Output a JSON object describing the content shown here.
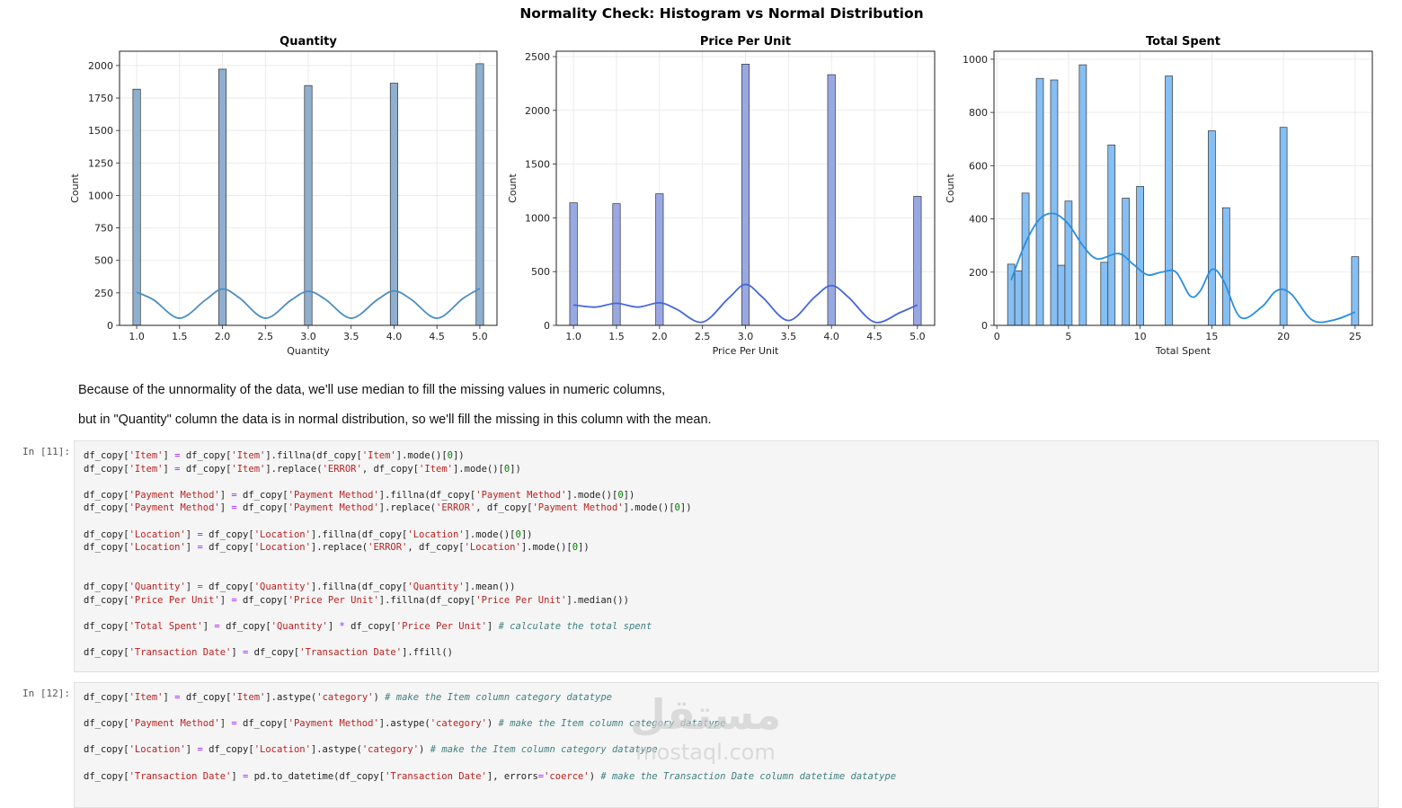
{
  "figure": {
    "suptitle": "Normality Check: Histogram vs Normal Distribution"
  },
  "chart_data": [
    {
      "type": "bar",
      "title": "Quantity",
      "xlabel": "Quantity",
      "ylabel": "Count",
      "xlim": [
        0.8,
        5.2
      ],
      "ylim": [
        0,
        2110
      ],
      "xticks": [
        "1.0",
        "1.5",
        "2.0",
        "2.5",
        "3.0",
        "3.5",
        "4.0",
        "4.5",
        "5.0"
      ],
      "xtick_values": [
        1.0,
        1.5,
        2.0,
        2.5,
        3.0,
        3.5,
        4.0,
        4.5,
        5.0
      ],
      "yticks": [
        0,
        250,
        500,
        750,
        1000,
        1250,
        1500,
        1750,
        2000
      ],
      "bar_width": 0.088,
      "bar_color": "#8fafcf",
      "kde_color": "#4c8ec0",
      "bars": [
        {
          "x": 1.0,
          "y": 1818
        },
        {
          "x": 2.0,
          "y": 1972
        },
        {
          "x": 3.0,
          "y": 1846
        },
        {
          "x": 4.0,
          "y": 1864
        },
        {
          "x": 5.0,
          "y": 2014
        }
      ],
      "kde": [
        [
          1.0,
          255
        ],
        [
          1.2,
          195
        ],
        [
          1.5,
          55
        ],
        [
          1.8,
          195
        ],
        [
          2.0,
          280
        ],
        [
          2.2,
          210
        ],
        [
          2.5,
          55
        ],
        [
          2.8,
          195
        ],
        [
          3.0,
          262
        ],
        [
          3.2,
          200
        ],
        [
          3.5,
          55
        ],
        [
          3.8,
          195
        ],
        [
          4.0,
          265
        ],
        [
          4.2,
          200
        ],
        [
          4.5,
          55
        ],
        [
          4.8,
          205
        ],
        [
          5.0,
          285
        ]
      ],
      "grid": true
    },
    {
      "type": "bar",
      "title": "Price Per Unit",
      "xlabel": "Price Per Unit",
      "ylabel": "Count",
      "xlim": [
        0.8,
        5.2
      ],
      "ylim": [
        0,
        2550
      ],
      "xticks": [
        "1.0",
        "1.5",
        "2.0",
        "2.5",
        "3.0",
        "3.5",
        "4.0",
        "4.5",
        "5.0"
      ],
      "xtick_values": [
        1.0,
        1.5,
        2.0,
        2.5,
        3.0,
        3.5,
        4.0,
        4.5,
        5.0
      ],
      "yticks": [
        0,
        500,
        1000,
        1500,
        2000,
        2500
      ],
      "bar_width": 0.088,
      "bar_color": "#99a8e2",
      "kde_color": "#4466dd",
      "bars": [
        {
          "x": 1.0,
          "y": 1140
        },
        {
          "x": 1.5,
          "y": 1132
        },
        {
          "x": 2.0,
          "y": 1224
        },
        {
          "x": 3.0,
          "y": 2430
        },
        {
          "x": 4.0,
          "y": 2332
        },
        {
          "x": 5.0,
          "y": 1200
        }
      ],
      "kde": [
        [
          1.0,
          190
        ],
        [
          1.25,
          170
        ],
        [
          1.5,
          205
        ],
        [
          1.75,
          170
        ],
        [
          2.0,
          210
        ],
        [
          2.2,
          150
        ],
        [
          2.5,
          30
        ],
        [
          2.8,
          250
        ],
        [
          3.0,
          380
        ],
        [
          3.2,
          260
        ],
        [
          3.5,
          45
        ],
        [
          3.8,
          260
        ],
        [
          4.0,
          370
        ],
        [
          4.2,
          260
        ],
        [
          4.5,
          30
        ],
        [
          4.8,
          120
        ],
        [
          5.0,
          190
        ]
      ],
      "grid": true
    },
    {
      "type": "bar",
      "title": "Total Spent",
      "xlabel": "Total Spent",
      "ylabel": "Count",
      "xlim": [
        -0.2,
        26.2
      ],
      "ylim": [
        0,
        1030
      ],
      "xticks": [
        "0",
        "5",
        "10",
        "15",
        "20",
        "25"
      ],
      "xtick_values": [
        0,
        5,
        10,
        15,
        20,
        25
      ],
      "yticks": [
        0,
        200,
        400,
        600,
        800,
        1000
      ],
      "bar_width": 0.5,
      "bar_color": "#86bff3",
      "kde_color": "#2a8ee0",
      "bars": [
        {
          "x": 1.0,
          "y": 230
        },
        {
          "x": 1.5,
          "y": 205
        },
        {
          "x": 2.0,
          "y": 497
        },
        {
          "x": 3.0,
          "y": 928
        },
        {
          "x": 4.0,
          "y": 922
        },
        {
          "x": 4.5,
          "y": 226
        },
        {
          "x": 5.0,
          "y": 467
        },
        {
          "x": 6.0,
          "y": 979
        },
        {
          "x": 7.5,
          "y": 237
        },
        {
          "x": 8.0,
          "y": 678
        },
        {
          "x": 9.0,
          "y": 478
        },
        {
          "x": 10.0,
          "y": 522
        },
        {
          "x": 12.0,
          "y": 937
        },
        {
          "x": 15.0,
          "y": 731
        },
        {
          "x": 16.0,
          "y": 442
        },
        {
          "x": 20.0,
          "y": 744
        },
        {
          "x": 25.0,
          "y": 258
        }
      ],
      "kde": [
        [
          1.0,
          170
        ],
        [
          2.0,
          310
        ],
        [
          3.0,
          400
        ],
        [
          4.0,
          420
        ],
        [
          5.0,
          380
        ],
        [
          6.0,
          300
        ],
        [
          7.0,
          250
        ],
        [
          8.5,
          270
        ],
        [
          9.5,
          230
        ],
        [
          10.5,
          190
        ],
        [
          11.5,
          200
        ],
        [
          12.5,
          200
        ],
        [
          13.5,
          110
        ],
        [
          14.2,
          130
        ],
        [
          15.0,
          210
        ],
        [
          15.8,
          170
        ],
        [
          17.0,
          30
        ],
        [
          18.5,
          70
        ],
        [
          19.5,
          130
        ],
        [
          20.5,
          120
        ],
        [
          22.0,
          20
        ],
        [
          23.5,
          20
        ],
        [
          25.0,
          50
        ]
      ],
      "grid": true
    }
  ],
  "markdown": {
    "line1": "Because of the unnormality of the data, we'll use median to fill the missing values in numeric columns,",
    "line2": "but in \"Quantity\" column the data is in normal distribution, so we'll fill the missing in this column with the mean."
  },
  "cells": [
    {
      "prompt": "In [11]:",
      "lines": [
        [
          [
            "n",
            "df_copy["
          ],
          [
            "s",
            "'Item'"
          ],
          [
            "n",
            "] "
          ],
          [
            "o",
            "="
          ],
          [
            "n",
            " df_copy["
          ],
          [
            "s",
            "'Item'"
          ],
          [
            "n",
            "].fillna(df_copy["
          ],
          [
            "s",
            "'Item'"
          ],
          [
            "n",
            "].mode()["
          ],
          [
            "g",
            "0"
          ],
          [
            "n",
            "])"
          ]
        ],
        [
          [
            "n",
            "df_copy["
          ],
          [
            "s",
            "'Item'"
          ],
          [
            "n",
            "] "
          ],
          [
            "o",
            "="
          ],
          [
            "n",
            " df_copy["
          ],
          [
            "s",
            "'Item'"
          ],
          [
            "n",
            "].replace("
          ],
          [
            "s",
            "'ERROR'"
          ],
          [
            "n",
            ", df_copy["
          ],
          [
            "s",
            "'Item'"
          ],
          [
            "n",
            "].mode()["
          ],
          [
            "g",
            "0"
          ],
          [
            "n",
            "])"
          ]
        ],
        [],
        [
          [
            "n",
            "df_copy["
          ],
          [
            "s",
            "'Payment Method'"
          ],
          [
            "n",
            "] "
          ],
          [
            "o",
            "="
          ],
          [
            "n",
            " df_copy["
          ],
          [
            "s",
            "'Payment Method'"
          ],
          [
            "n",
            "].fillna(df_copy["
          ],
          [
            "s",
            "'Payment Method'"
          ],
          [
            "n",
            "].mode()["
          ],
          [
            "g",
            "0"
          ],
          [
            "n",
            "])"
          ]
        ],
        [
          [
            "n",
            "df_copy["
          ],
          [
            "s",
            "'Payment Method'"
          ],
          [
            "n",
            "] "
          ],
          [
            "o",
            "="
          ],
          [
            "n",
            " df_copy["
          ],
          [
            "s",
            "'Payment Method'"
          ],
          [
            "n",
            "].replace("
          ],
          [
            "s",
            "'ERROR'"
          ],
          [
            "n",
            ", df_copy["
          ],
          [
            "s",
            "'Payment Method'"
          ],
          [
            "n",
            "].mode()["
          ],
          [
            "g",
            "0"
          ],
          [
            "n",
            "])"
          ]
        ],
        [],
        [
          [
            "n",
            "df_copy["
          ],
          [
            "s",
            "'Location'"
          ],
          [
            "n",
            "] "
          ],
          [
            "o",
            "="
          ],
          [
            "n",
            " df_copy["
          ],
          [
            "s",
            "'Location'"
          ],
          [
            "n",
            "].fillna(df_copy["
          ],
          [
            "s",
            "'Location'"
          ],
          [
            "n",
            "].mode()["
          ],
          [
            "g",
            "0"
          ],
          [
            "n",
            "])"
          ]
        ],
        [
          [
            "n",
            "df_copy["
          ],
          [
            "s",
            "'Location'"
          ],
          [
            "n",
            "] "
          ],
          [
            "o",
            "="
          ],
          [
            "n",
            " df_copy["
          ],
          [
            "s",
            "'Location'"
          ],
          [
            "n",
            "].replace("
          ],
          [
            "s",
            "'ERROR'"
          ],
          [
            "n",
            ", df_copy["
          ],
          [
            "s",
            "'Location'"
          ],
          [
            "n",
            "].mode()["
          ],
          [
            "g",
            "0"
          ],
          [
            "n",
            "])"
          ]
        ],
        [],
        [],
        [
          [
            "n",
            "df_copy["
          ],
          [
            "s",
            "'Quantity'"
          ],
          [
            "n",
            "] "
          ],
          [
            "o",
            "="
          ],
          [
            "n",
            " df_copy["
          ],
          [
            "s",
            "'Quantity'"
          ],
          [
            "n",
            "].fillna(df_copy["
          ],
          [
            "s",
            "'Quantity'"
          ],
          [
            "n",
            "].mean())"
          ]
        ],
        [
          [
            "n",
            "df_copy["
          ],
          [
            "s",
            "'Price Per Unit'"
          ],
          [
            "n",
            "] "
          ],
          [
            "o",
            "="
          ],
          [
            "n",
            " df_copy["
          ],
          [
            "s",
            "'Price Per Unit'"
          ],
          [
            "n",
            "].fillna(df_copy["
          ],
          [
            "s",
            "'Price Per Unit'"
          ],
          [
            "n",
            "].median())"
          ]
        ],
        [],
        [
          [
            "n",
            "df_copy["
          ],
          [
            "s",
            "'Total Spent'"
          ],
          [
            "n",
            "] "
          ],
          [
            "o",
            "="
          ],
          [
            "n",
            " df_copy["
          ],
          [
            "s",
            "'Quantity'"
          ],
          [
            "n",
            "] "
          ],
          [
            "o",
            "*"
          ],
          [
            "n",
            " df_copy["
          ],
          [
            "s",
            "'Price Per Unit'"
          ],
          [
            "n",
            "] "
          ],
          [
            "c",
            "# calculate the total spent"
          ]
        ],
        [],
        [
          [
            "n",
            "df_copy["
          ],
          [
            "s",
            "'Transaction Date'"
          ],
          [
            "n",
            "] "
          ],
          [
            "o",
            "="
          ],
          [
            "n",
            " df_copy["
          ],
          [
            "s",
            "'Transaction Date'"
          ],
          [
            "n",
            "].ffill()"
          ]
        ]
      ]
    },
    {
      "prompt": "In [12]:",
      "lines": [
        [
          [
            "n",
            "df_copy["
          ],
          [
            "s",
            "'Item'"
          ],
          [
            "n",
            "] "
          ],
          [
            "o",
            "="
          ],
          [
            "n",
            " df_copy["
          ],
          [
            "s",
            "'Item'"
          ],
          [
            "n",
            "].astype("
          ],
          [
            "s",
            "'category'"
          ],
          [
            "n",
            ") "
          ],
          [
            "c",
            "# make the Item column category datatype"
          ]
        ],
        [],
        [
          [
            "n",
            "df_copy["
          ],
          [
            "s",
            "'Payment Method'"
          ],
          [
            "n",
            "] "
          ],
          [
            "o",
            "="
          ],
          [
            "n",
            " df_copy["
          ],
          [
            "s",
            "'Payment Method'"
          ],
          [
            "n",
            "].astype("
          ],
          [
            "s",
            "'category'"
          ],
          [
            "n",
            ") "
          ],
          [
            "c",
            "# make the Item column category datatype"
          ]
        ],
        [],
        [
          [
            "n",
            "df_copy["
          ],
          [
            "s",
            "'Location'"
          ],
          [
            "n",
            "] "
          ],
          [
            "o",
            "="
          ],
          [
            "n",
            " df_copy["
          ],
          [
            "s",
            "'Location'"
          ],
          [
            "n",
            "].astype("
          ],
          [
            "s",
            "'category'"
          ],
          [
            "n",
            ") "
          ],
          [
            "c",
            "# make the Item column category datatype"
          ]
        ],
        [],
        [
          [
            "n",
            "df_copy["
          ],
          [
            "s",
            "'Transaction Date'"
          ],
          [
            "n",
            "] "
          ],
          [
            "o",
            "="
          ],
          [
            "n",
            " pd.to_datetime(df_copy["
          ],
          [
            "s",
            "'Transaction Date'"
          ],
          [
            "n",
            "], errors"
          ],
          [
            "o",
            "="
          ],
          [
            "s",
            "'coerce'"
          ],
          [
            "n",
            ") "
          ],
          [
            "c",
            "# make the Transaction Date column datetime datatype"
          ]
        ]
      ]
    }
  ],
  "watermark": {
    "arabic": "مستقل",
    "latin": "mostaql.com"
  }
}
